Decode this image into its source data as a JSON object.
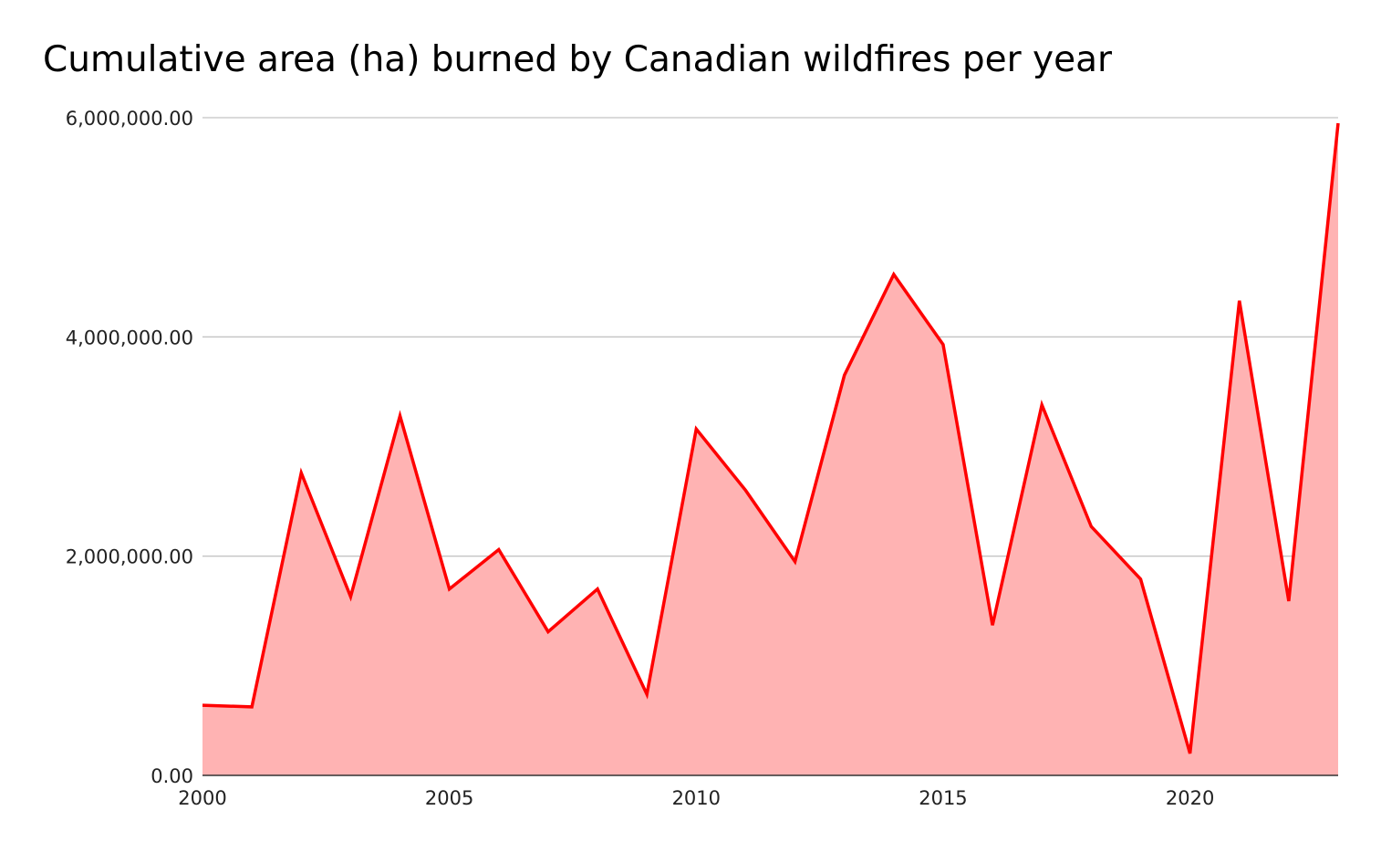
{
  "chart_data": {
    "type": "area",
    "title": "Cumulative area (ha) burned by Canadian wildfires per year",
    "xlabel": "",
    "ylabel": "",
    "x": [
      2000,
      2001,
      2002,
      2003,
      2004,
      2005,
      2006,
      2007,
      2008,
      2009,
      2010,
      2011,
      2012,
      2013,
      2014,
      2015,
      2016,
      2017,
      2018,
      2019,
      2020,
      2021,
      2022,
      2023
    ],
    "values": [
      640000,
      625000,
      2760000,
      1630000,
      3280000,
      1700000,
      2060000,
      1310000,
      1700000,
      740000,
      3160000,
      2600000,
      1950000,
      3650000,
      4570000,
      3930000,
      1370000,
      3380000,
      2270000,
      1790000,
      200000,
      4330000,
      1590000,
      5950000
    ],
    "xlim": [
      2000,
      2023
    ],
    "ylim": [
      0,
      6000000
    ],
    "x_ticks": [
      "2000",
      "2005",
      "2010",
      "2015",
      "2020"
    ],
    "x_tick_values": [
      2000,
      2005,
      2010,
      2015,
      2020
    ],
    "y_ticks": [
      "0.00",
      "2,000,000.00",
      "4,000,000.00",
      "6,000,000.00"
    ],
    "y_tick_values": [
      0,
      2000000,
      4000000,
      6000000
    ],
    "grid": true,
    "legend": "none",
    "colors": {
      "line": "#ff0000",
      "fill": "#ffb3b3"
    }
  }
}
